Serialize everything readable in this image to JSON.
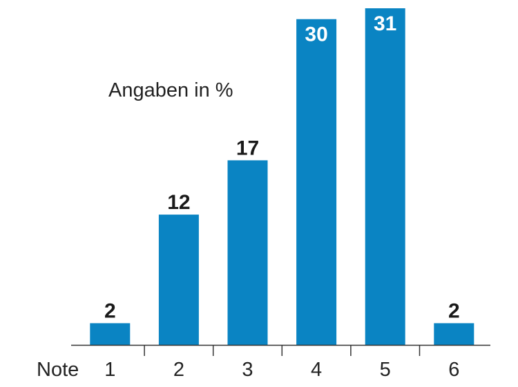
{
  "chart_data": {
    "type": "bar",
    "subtitle": "Angaben in %",
    "x_label": "Note",
    "categories": [
      "1",
      "2",
      "3",
      "4",
      "5",
      "6"
    ],
    "values": [
      2,
      12,
      17,
      30,
      31,
      2
    ],
    "color": "#0a84c3"
  }
}
